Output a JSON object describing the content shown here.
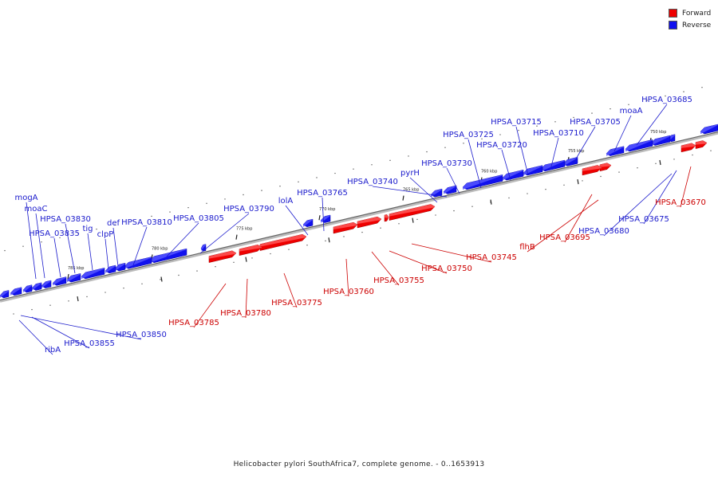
{
  "legend": {
    "forward": {
      "label": "Forward",
      "color": "#ee0000"
    },
    "reverse": {
      "label": "Reverse",
      "color": "#1111ee"
    }
  },
  "caption": "Helicobacter pylori SouthAfrica7, complete genome. - 0..1653913",
  "colors": {
    "forward": "#ee0000",
    "forward_face": "#ff5c5c",
    "reverse": "#1111ee",
    "reverse_face": "#5a5aff",
    "forward_text": "#cc0000",
    "reverse_text": "#1a1acc",
    "axis": "#777777"
  },
  "ticks": [
    "750 kbp",
    "755 kbp",
    "760 kbp",
    "765 kbp",
    "770 kbp",
    "775 kbp",
    "780 kbp",
    "785 kbp"
  ],
  "reverse_labels": [
    "HPSA_03685",
    "moaA",
    "HPSA_03705",
    "HPSA_03710",
    "HPSA_03715",
    "HPSA_03720",
    "HPSA_03725",
    "HPSA_03730",
    "pyrH",
    "HPSA_03740",
    "HPSA_03765",
    "lolA",
    "HPSA_03790",
    "HPSA_03805",
    "HPSA_03810",
    "def",
    "clpP",
    "tig",
    "HPSA_03830",
    "HPSA_03835",
    "moaC",
    "mogA"
  ],
  "forward_labels": [
    "HPSA_03670",
    "HPSA_03695",
    "flhB",
    "HPSA_03745",
    "HPSA_03750",
    "HPSA_03755",
    "HPSA_03760",
    "HPSA_03775",
    "HPSA_03780",
    "HPSA_03785"
  ],
  "lower_reverse_labels": [
    "HPSA_03675",
    "HPSA_03680",
    "HPSA_03850",
    "HPSA_03855",
    "ribA"
  ]
}
